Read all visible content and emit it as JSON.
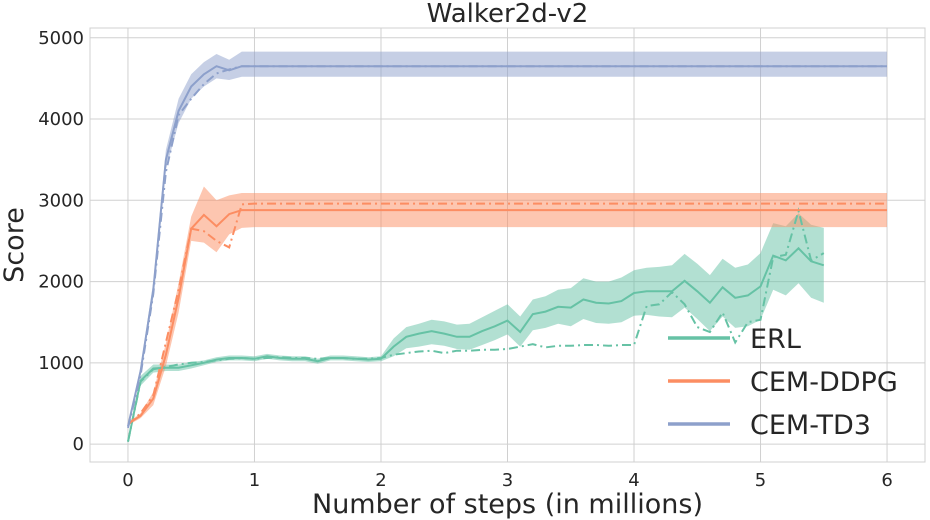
{
  "chart_data": {
    "type": "line",
    "title": "Walker2d-v2",
    "xlabel": "Number of steps (in millions)",
    "ylabel": "Score",
    "xlim": [
      -0.3,
      6.3
    ],
    "ylim": [
      -220,
      5120
    ],
    "xticks": [
      0,
      1,
      2,
      3,
      4,
      5,
      6
    ],
    "yticks": [
      0,
      1000,
      2000,
      3000,
      4000,
      5000
    ],
    "grid": true,
    "legend_position": "bottom-right",
    "series": [
      {
        "name": "ERL",
        "color": "#66c2a5",
        "mean": [
          [
            0,
            30
          ],
          [
            0.1,
            780
          ],
          [
            0.2,
            930
          ],
          [
            0.3,
            940
          ],
          [
            0.4,
            940
          ],
          [
            0.5,
            970
          ],
          [
            0.6,
            1000
          ],
          [
            0.7,
            1040
          ],
          [
            0.8,
            1060
          ],
          [
            0.9,
            1060
          ],
          [
            1.0,
            1050
          ],
          [
            1.1,
            1080
          ],
          [
            1.2,
            1060
          ],
          [
            1.3,
            1050
          ],
          [
            1.4,
            1050
          ],
          [
            1.5,
            1020
          ],
          [
            1.6,
            1060
          ],
          [
            1.7,
            1060
          ],
          [
            1.8,
            1050
          ],
          [
            1.9,
            1040
          ],
          [
            2.0,
            1050
          ],
          [
            2.1,
            1200
          ],
          [
            2.2,
            1320
          ],
          [
            2.3,
            1360
          ],
          [
            2.4,
            1390
          ],
          [
            2.5,
            1360
          ],
          [
            2.6,
            1320
          ],
          [
            2.7,
            1320
          ],
          [
            2.8,
            1390
          ],
          [
            2.9,
            1450
          ],
          [
            3.0,
            1520
          ],
          [
            3.1,
            1380
          ],
          [
            3.2,
            1600
          ],
          [
            3.3,
            1630
          ],
          [
            3.4,
            1690
          ],
          [
            3.5,
            1680
          ],
          [
            3.6,
            1780
          ],
          [
            3.7,
            1740
          ],
          [
            3.8,
            1730
          ],
          [
            3.9,
            1760
          ],
          [
            4.0,
            1860
          ],
          [
            4.1,
            1880
          ],
          [
            4.2,
            1880
          ],
          [
            4.3,
            1880
          ],
          [
            4.4,
            2010
          ],
          [
            4.5,
            1880
          ],
          [
            4.6,
            1740
          ],
          [
            4.7,
            1930
          ],
          [
            4.8,
            1800
          ],
          [
            4.9,
            1830
          ],
          [
            5.0,
            1940
          ],
          [
            5.1,
            2320
          ],
          [
            5.2,
            2260
          ],
          [
            5.3,
            2410
          ],
          [
            5.4,
            2250
          ],
          [
            5.5,
            2200
          ]
        ],
        "band": [
          [
            0,
            30,
            30
          ],
          [
            0.1,
            720,
            840
          ],
          [
            0.2,
            880,
            980
          ],
          [
            0.3,
            900,
            980
          ],
          [
            0.4,
            900,
            980
          ],
          [
            0.5,
            930,
            1010
          ],
          [
            0.6,
            970,
            1030
          ],
          [
            0.7,
            1010,
            1070
          ],
          [
            0.8,
            1030,
            1090
          ],
          [
            0.9,
            1030,
            1090
          ],
          [
            1.0,
            1020,
            1080
          ],
          [
            1.1,
            1050,
            1110
          ],
          [
            1.2,
            1030,
            1090
          ],
          [
            1.3,
            1020,
            1080
          ],
          [
            1.4,
            1020,
            1080
          ],
          [
            1.5,
            990,
            1050
          ],
          [
            1.6,
            1030,
            1090
          ],
          [
            1.7,
            1030,
            1090
          ],
          [
            1.8,
            1020,
            1080
          ],
          [
            1.9,
            1010,
            1070
          ],
          [
            2.0,
            1020,
            1080
          ],
          [
            2.1,
            1080,
            1300
          ],
          [
            2.2,
            1180,
            1440
          ],
          [
            2.3,
            1200,
            1480
          ],
          [
            2.4,
            1230,
            1530
          ],
          [
            2.5,
            1210,
            1510
          ],
          [
            2.6,
            1170,
            1470
          ],
          [
            2.7,
            1160,
            1480
          ],
          [
            2.8,
            1220,
            1560
          ],
          [
            2.9,
            1280,
            1640
          ],
          [
            3.0,
            1350,
            1720
          ],
          [
            3.1,
            1200,
            1570
          ],
          [
            3.2,
            1400,
            1780
          ],
          [
            3.3,
            1430,
            1820
          ],
          [
            3.4,
            1480,
            1900
          ],
          [
            3.5,
            1450,
            1920
          ],
          [
            3.6,
            1540,
            2040
          ],
          [
            3.7,
            1490,
            2000
          ],
          [
            3.8,
            1480,
            2000
          ],
          [
            3.9,
            1500,
            2050
          ],
          [
            4.0,
            1580,
            2140
          ],
          [
            4.1,
            1590,
            2170
          ],
          [
            4.2,
            1570,
            2180
          ],
          [
            4.3,
            1560,
            2200
          ],
          [
            4.4,
            1680,
            2340
          ],
          [
            4.5,
            1540,
            2220
          ],
          [
            4.6,
            1390,
            2080
          ],
          [
            4.7,
            1570,
            2280
          ],
          [
            4.8,
            1430,
            2170
          ],
          [
            4.9,
            1450,
            2210
          ],
          [
            5.0,
            1530,
            2350
          ],
          [
            5.1,
            1900,
            2720
          ],
          [
            5.2,
            1830,
            2680
          ],
          [
            5.3,
            1980,
            2840
          ],
          [
            5.4,
            1800,
            2700
          ],
          [
            5.5,
            1740,
            2660
          ]
        ],
        "alt": [
          [
            0,
            30
          ],
          [
            0.1,
            770
          ],
          [
            0.2,
            920
          ],
          [
            0.3,
            950
          ],
          [
            0.4,
            980
          ],
          [
            0.5,
            1000
          ],
          [
            0.6,
            1010
          ],
          [
            0.7,
            1030
          ],
          [
            0.8,
            1050
          ],
          [
            0.9,
            1060
          ],
          [
            1.0,
            1050
          ],
          [
            1.1,
            1060
          ],
          [
            1.2,
            1070
          ],
          [
            1.3,
            1060
          ],
          [
            1.4,
            1060
          ],
          [
            1.5,
            1050
          ],
          [
            1.6,
            1060
          ],
          [
            1.7,
            1060
          ],
          [
            1.8,
            1050
          ],
          [
            1.9,
            1050
          ],
          [
            2.0,
            1060
          ],
          [
            2.1,
            1100
          ],
          [
            2.2,
            1120
          ],
          [
            2.3,
            1140
          ],
          [
            2.4,
            1150
          ],
          [
            2.5,
            1120
          ],
          [
            2.6,
            1150
          ],
          [
            2.7,
            1150
          ],
          [
            2.8,
            1160
          ],
          [
            2.9,
            1160
          ],
          [
            3.0,
            1170
          ],
          [
            3.1,
            1200
          ],
          [
            3.2,
            1230
          ],
          [
            3.3,
            1190
          ],
          [
            3.4,
            1210
          ],
          [
            3.5,
            1210
          ],
          [
            3.6,
            1220
          ],
          [
            3.7,
            1220
          ],
          [
            3.8,
            1210
          ],
          [
            3.9,
            1220
          ],
          [
            4.0,
            1220
          ],
          [
            4.1,
            1700
          ],
          [
            4.2,
            1720
          ],
          [
            4.3,
            1870
          ],
          [
            4.4,
            1720
          ],
          [
            4.5,
            1440
          ],
          [
            4.6,
            1380
          ],
          [
            4.7,
            1620
          ],
          [
            4.8,
            1250
          ],
          [
            4.9,
            1500
          ],
          [
            5.0,
            1530
          ],
          [
            5.1,
            2300
          ],
          [
            5.2,
            2330
          ],
          [
            5.3,
            2870
          ],
          [
            5.4,
            2260
          ],
          [
            5.5,
            2350
          ]
        ]
      },
      {
        "name": "CEM-DDPG",
        "color": "#fc8d62",
        "mean": [
          [
            0,
            250
          ],
          [
            0.1,
            350
          ],
          [
            0.2,
            560
          ],
          [
            0.3,
            1100
          ],
          [
            0.4,
            1800
          ],
          [
            0.5,
            2650
          ],
          [
            0.6,
            2820
          ],
          [
            0.7,
            2680
          ],
          [
            0.8,
            2830
          ],
          [
            0.9,
            2880
          ],
          [
            1.0,
            2880
          ],
          [
            6.0,
            2880
          ]
        ],
        "band": [
          [
            0,
            230,
            270
          ],
          [
            0.1,
            320,
            380
          ],
          [
            0.2,
            480,
            640
          ],
          [
            0.3,
            960,
            1240
          ],
          [
            0.4,
            1620,
            1980
          ],
          [
            0.5,
            2500,
            2800
          ],
          [
            0.6,
            2480,
            3170
          ],
          [
            0.7,
            2360,
            3000
          ],
          [
            0.8,
            2580,
            3060
          ],
          [
            0.9,
            2660,
            3090
          ],
          [
            1.0,
            2670,
            3090
          ],
          [
            6.0,
            2670,
            3090
          ]
        ],
        "alt": [
          [
            0,
            240
          ],
          [
            0.1,
            380
          ],
          [
            0.2,
            600
          ],
          [
            0.3,
            1250
          ],
          [
            0.4,
            1900
          ],
          [
            0.5,
            2650
          ],
          [
            0.6,
            2620
          ],
          [
            0.7,
            2500
          ],
          [
            0.8,
            2420
          ],
          [
            0.9,
            2950
          ],
          [
            1.0,
            2960
          ],
          [
            6.0,
            2960
          ]
        ]
      },
      {
        "name": "CEM-TD3",
        "color": "#8da0cb",
        "mean": [
          [
            0,
            220
          ],
          [
            0.1,
            900
          ],
          [
            0.2,
            1900
          ],
          [
            0.3,
            3500
          ],
          [
            0.4,
            4100
          ],
          [
            0.5,
            4400
          ],
          [
            0.6,
            4550
          ],
          [
            0.7,
            4650
          ],
          [
            0.8,
            4600
          ],
          [
            0.9,
            4650
          ],
          [
            1.0,
            4650
          ],
          [
            6.0,
            4650
          ]
        ],
        "band": [
          [
            0,
            200,
            240
          ],
          [
            0.1,
            850,
            950
          ],
          [
            0.2,
            1800,
            2000
          ],
          [
            0.3,
            3380,
            3620
          ],
          [
            0.4,
            3950,
            4250
          ],
          [
            0.5,
            4250,
            4550
          ],
          [
            0.6,
            4400,
            4700
          ],
          [
            0.7,
            4500,
            4800
          ],
          [
            0.8,
            4480,
            4730
          ],
          [
            0.9,
            4520,
            4830
          ],
          [
            1.0,
            4520,
            4830
          ],
          [
            6.0,
            4520,
            4830
          ]
        ],
        "alt": [
          [
            0,
            200
          ],
          [
            0.1,
            850
          ],
          [
            0.2,
            1850
          ],
          [
            0.3,
            3350
          ],
          [
            0.4,
            4050
          ],
          [
            0.5,
            4250
          ],
          [
            0.6,
            4430
          ],
          [
            0.7,
            4560
          ],
          [
            0.8,
            4610
          ],
          [
            0.9,
            4650
          ],
          [
            1.0,
            4650
          ],
          [
            6.0,
            4650
          ]
        ]
      }
    ]
  }
}
